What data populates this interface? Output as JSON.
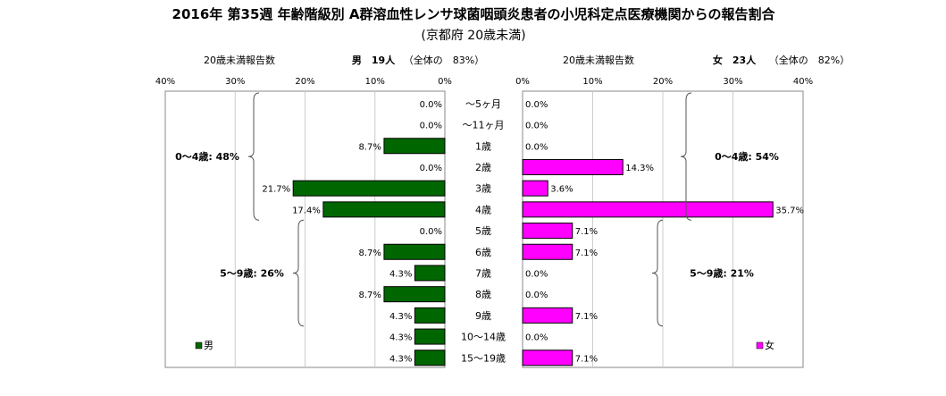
{
  "chart_data": {
    "type": "bar",
    "title": "2016年 第35週 年齢階級別 A群溶血性レンサ球菌咽頭炎患者の小児科定点医療機関からの報告割合",
    "subtitle": "(京都府 20歳未満)",
    "categories": [
      "～5ヶ月",
      "～11ヶ月",
      "1歳",
      "2歳",
      "3歳",
      "4歳",
      "5歳",
      "6歳",
      "7歳",
      "8歳",
      "9歳",
      "10～14歳",
      "15～19歳"
    ],
    "xlim": [
      0,
      40
    ],
    "ticks": [
      "0%",
      "10%",
      "20%",
      "30%",
      "40%"
    ],
    "tick_values": [
      0,
      10,
      20,
      30,
      40
    ],
    "grid": true,
    "series": [
      {
        "name": "男",
        "side": "left",
        "color": "#006600",
        "header_label": "20歳未満報告数",
        "header_count": "男　19人",
        "header_share": "（全体の　83%）",
        "values": [
          0.0,
          0.0,
          8.7,
          0.0,
          21.7,
          17.4,
          0.0,
          8.7,
          4.3,
          8.7,
          4.3,
          4.3,
          4.3
        ],
        "labels": [
          "0.0%",
          "0.0%",
          "8.7%",
          "0.0%",
          "21.7%",
          "17.4%",
          "0.0%",
          "8.7%",
          "4.3%",
          "8.7%",
          "4.3%",
          "4.3%",
          "4.3%"
        ],
        "groups": [
          {
            "label": "0～4歳: 48%",
            "from": 0,
            "to": 5
          },
          {
            "label": "5～9歳: 26%",
            "from": 6,
            "to": 10
          }
        ]
      },
      {
        "name": "女",
        "side": "right",
        "color": "#ff00ff",
        "header_label": "20歳未満報告数",
        "header_count": "女　23人",
        "header_share": "（全体の　82%）",
        "values": [
          0.0,
          0.0,
          0.0,
          14.3,
          3.6,
          35.7,
          7.1,
          7.1,
          0.0,
          0.0,
          7.1,
          0.0,
          7.1
        ],
        "labels": [
          "0.0%",
          "0.0%",
          "0.0%",
          "14.3%",
          "3.6%",
          "35.7%",
          "7.1%",
          "7.1%",
          "0.0%",
          "0.0%",
          "7.1%",
          "0.0%",
          "7.1%"
        ],
        "groups": [
          {
            "label": "0～4歳: 54%",
            "from": 0,
            "to": 5
          },
          {
            "label": "5～9歳: 21%",
            "from": 6,
            "to": 10
          }
        ]
      }
    ]
  }
}
